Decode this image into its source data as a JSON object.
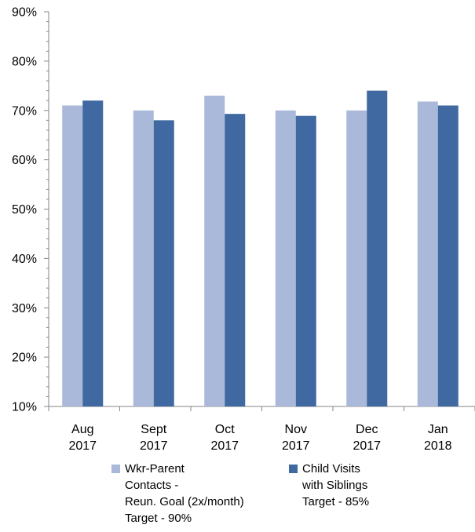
{
  "chart_data": {
    "type": "bar",
    "title": "",
    "xlabel": "",
    "ylabel": "",
    "ylim": [
      10,
      90
    ],
    "y_ticks": [
      "10%",
      "20%",
      "30%",
      "40%",
      "50%",
      "60%",
      "70%",
      "80%",
      "90%"
    ],
    "y_tick_values": [
      10,
      20,
      30,
      40,
      50,
      60,
      70,
      80,
      90
    ],
    "categories": [
      [
        "Aug",
        "2017"
      ],
      [
        "Sept",
        "2017"
      ],
      [
        "Oct",
        "2017"
      ],
      [
        "Nov",
        "2017"
      ],
      [
        "Dec",
        "2017"
      ],
      [
        "Jan",
        "2018"
      ]
    ],
    "series": [
      {
        "name": [
          "Wkr-Parent",
          "Contacts -",
          "Reun. Goal (2x/month)",
          "Target - 90%"
        ],
        "color": "#aab9d9",
        "values": [
          71,
          70,
          73,
          70,
          70,
          71.8
        ]
      },
      {
        "name": [
          "Child Visits",
          "with Siblings",
          "Target - 85%"
        ],
        "color": "#3f69a0",
        "values": [
          72,
          68,
          69.3,
          68.9,
          74,
          71
        ]
      }
    ],
    "grid": false,
    "legend_position": "bottom"
  }
}
